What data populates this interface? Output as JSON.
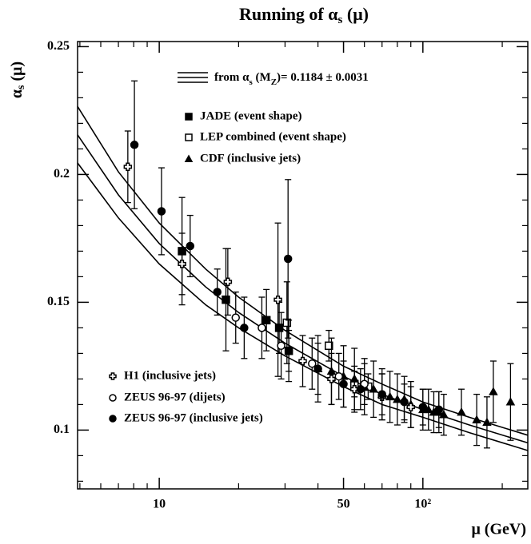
{
  "chart_data": {
    "type": "scatter",
    "title": {
      "text": "Running of  α",
      "sub": "s",
      "tail": " (μ)"
    },
    "y_label": {
      "text": "α",
      "sub": "s",
      "tail": " (μ)"
    },
    "x_label": "μ (GeV)",
    "theory_label": {
      "a": "from α",
      "sub1": "s",
      "b": " (M",
      "sub2": "Z",
      "c": ")= 0.1184  ± 0.0031"
    },
    "x_log": true,
    "xlim": [
      4.9,
      250
    ],
    "xticks": [
      10,
      50,
      {
        "value": 100,
        "label": "10²"
      }
    ],
    "xminor": [
      5,
      6,
      7,
      8,
      9,
      20,
      30,
      40,
      60,
      70,
      80,
      90,
      200
    ],
    "ylim": [
      0.077,
      0.252
    ],
    "yticks": [
      0.1,
      0.15,
      0.2,
      0.25
    ],
    "yminor": [
      0.08,
      0.09,
      0.11,
      0.12,
      0.13,
      0.14,
      0.16,
      0.17,
      0.18,
      0.19,
      0.21,
      0.22,
      0.23,
      0.24
    ],
    "curves": [
      {
        "x": [
          4.9,
          7,
          10,
          15,
          20,
          30,
          50,
          70,
          100,
          150,
          250
        ],
        "values": [
          0.2266,
          0.201,
          0.181,
          0.163,
          0.152,
          0.139,
          0.125,
          0.118,
          0.111,
          0.105,
          0.098
        ]
      },
      {
        "x": [
          4.9,
          7,
          10,
          15,
          20,
          30,
          50,
          70,
          100,
          150,
          250
        ],
        "values": [
          0.2155,
          0.192,
          0.173,
          0.156,
          0.146,
          0.134,
          0.121,
          0.114,
          0.108,
          0.102,
          0.095
        ]
      },
      {
        "x": [
          4.9,
          7,
          10,
          15,
          20,
          30,
          50,
          70,
          100,
          150,
          250
        ],
        "values": [
          0.2045,
          0.183,
          0.165,
          0.149,
          0.14,
          0.129,
          0.117,
          0.11,
          0.105,
          0.099,
          0.092
        ]
      }
    ],
    "series": [
      {
        "name": "JADE (event shape)",
        "marker": "filled-square",
        "color": "#000000",
        "x": [
          12.2,
          17.9,
          25.5,
          28.5,
          31
        ],
        "values": [
          0.17,
          0.151,
          0.143,
          0.14,
          0.131
        ],
        "errors": [
          0.021,
          0.02,
          0.012,
          0.01,
          0.008
        ]
      },
      {
        "name": "LEP combined (event shape)",
        "marker": "open-square",
        "color": "#000000",
        "x": [
          30.5,
          44,
          55,
          62
        ],
        "values": [
          0.142,
          0.133,
          0.118,
          0.117
        ],
        "errors": [
          0.016,
          0.006,
          0.005,
          0.005
        ]
      },
      {
        "name": "CDF (inclusive jets)",
        "marker": "filled-triangle",
        "color": "#000000",
        "x": [
          40,
          45,
          50,
          55,
          60,
          65,
          70,
          75,
          80,
          85,
          90,
          100,
          105,
          110,
          115,
          120,
          140,
          160,
          175,
          185,
          215
        ],
        "values": [
          0.124,
          0.123,
          0.121,
          0.12,
          0.117,
          0.116,
          0.114,
          0.113,
          0.112,
          0.112,
          0.11,
          0.108,
          0.108,
          0.107,
          0.107,
          0.106,
          0.107,
          0.104,
          0.103,
          0.115,
          0.111
        ],
        "errors": [
          0.013,
          0.013,
          0.012,
          0.012,
          0.011,
          0.011,
          0.01,
          0.01,
          0.01,
          0.009,
          0.009,
          0.008,
          0.008,
          0.008,
          0.008,
          0.008,
          0.009,
          0.01,
          0.01,
          0.012,
          0.015
        ]
      },
      {
        "name": "H1 (inclusive jets)",
        "marker": "open-cross",
        "color": "#000000",
        "x": [
          7.6,
          12.2,
          18.2,
          28.2,
          35,
          45,
          55,
          70,
          90
        ],
        "values": [
          0.203,
          0.165,
          0.158,
          0.151,
          0.127,
          0.12,
          0.116,
          0.113,
          0.109
        ],
        "errors": [
          0.014,
          0.012,
          0.013,
          0.03,
          0.01,
          0.01,
          0.009,
          0.009,
          0.008
        ]
      },
      {
        "name": "ZEUS 96-97 (dijets)",
        "marker": "open-circle",
        "color": "#000000",
        "x": [
          19.5,
          24.5,
          29,
          38,
          48,
          60
        ],
        "values": [
          0.144,
          0.14,
          0.133,
          0.126,
          0.121,
          0.118
        ],
        "errors": [
          0.01,
          0.012,
          0.013,
          0.01,
          0.009,
          0.008
        ]
      },
      {
        "name": "ZEUS 96-97 (inclusive jets)",
        "marker": "filled-circle",
        "color": "#000000",
        "x": [
          8.05,
          10.2,
          13.1,
          16.6,
          21,
          30.8,
          31,
          40,
          50,
          58,
          70,
          85,
          100,
          115
        ],
        "values": [
          0.2116,
          0.1856,
          0.172,
          0.154,
          0.14,
          0.167,
          0.131,
          0.124,
          0.118,
          0.116,
          0.114,
          0.111,
          0.109,
          0.108
        ],
        "errors": [
          0.025,
          0.017,
          0.012,
          0.009,
          0.012,
          0.031,
          0.012,
          0.01,
          0.009,
          0.008,
          0.008,
          0.007,
          0.007,
          0.007
        ]
      }
    ]
  }
}
